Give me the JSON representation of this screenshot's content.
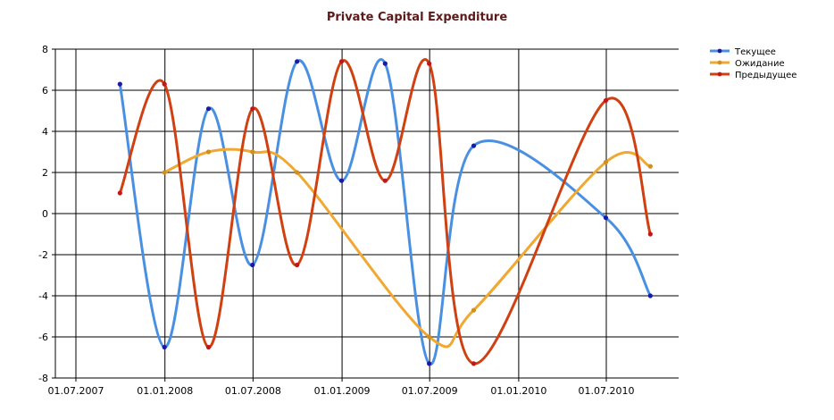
{
  "chart_data": {
    "type": "line",
    "title": "Private Capital Expenditure",
    "xlabel": "",
    "ylabel": "",
    "ylim": [
      -8,
      8
    ],
    "yticks": [
      8,
      6,
      4,
      2,
      0,
      -2,
      -4,
      -6,
      -8
    ],
    "xticks": [
      "01.07.2007",
      "01.01.2008",
      "01.07.2008",
      "01.01.2009",
      "01.07.2009",
      "01.01.2010",
      "01.07.2010"
    ],
    "grid": true,
    "smooth": true,
    "legend_position": "top-right",
    "series": [
      {
        "name": "Текущее",
        "color": "#4a90e2",
        "marker_color": "#1a1aa8",
        "points": [
          {
            "x": "2007-09-30",
            "y": 6.3
          },
          {
            "x": "2007-12-31",
            "y": -6.5
          },
          {
            "x": "2008-03-31",
            "y": 5.1
          },
          {
            "x": "2008-06-30",
            "y": -2.5
          },
          {
            "x": "2008-09-30",
            "y": 7.4
          },
          {
            "x": "2008-12-31",
            "y": 1.6
          },
          {
            "x": "2009-03-31",
            "y": 7.3
          },
          {
            "x": "2009-06-30",
            "y": -7.3
          },
          {
            "x": "2009-09-30",
            "y": 3.3
          },
          {
            "x": "2010-06-30",
            "y": -0.2
          },
          {
            "x": "2010-09-30",
            "y": -4.0
          }
        ]
      },
      {
        "name": "Ожидание",
        "color": "#f0a830",
        "marker_color": "#d09020",
        "points": [
          {
            "x": "2007-12-31",
            "y": 2.0
          },
          {
            "x": "2008-03-31",
            "y": 3.0
          },
          {
            "x": "2008-06-30",
            "y": 3.0
          },
          {
            "x": "2008-09-30",
            "y": 2.0
          },
          {
            "x": "2009-06-30",
            "y": -6.0
          },
          {
            "x": "2009-09-30",
            "y": -4.7
          },
          {
            "x": "2010-06-30",
            "y": 2.5
          },
          {
            "x": "2010-09-30",
            "y": 2.3
          }
        ]
      },
      {
        "name": "Предыдущее",
        "color": "#d04010",
        "marker_color": "#c01818",
        "points": [
          {
            "x": "2007-09-30",
            "y": 1.0
          },
          {
            "x": "2007-12-31",
            "y": 6.3
          },
          {
            "x": "2008-03-31",
            "y": -6.5
          },
          {
            "x": "2008-06-30",
            "y": 5.1
          },
          {
            "x": "2008-09-30",
            "y": -2.5
          },
          {
            "x": "2008-12-31",
            "y": 7.4
          },
          {
            "x": "2009-03-31",
            "y": 1.6
          },
          {
            "x": "2009-06-30",
            "y": 7.3
          },
          {
            "x": "2009-09-30",
            "y": -7.3
          },
          {
            "x": "2010-06-30",
            "y": 5.5
          },
          {
            "x": "2010-09-30",
            "y": -1.0
          }
        ]
      }
    ]
  }
}
